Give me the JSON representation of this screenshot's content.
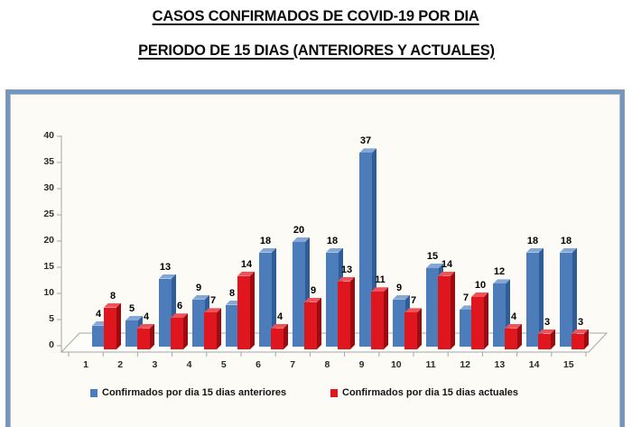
{
  "title": {
    "line1": "CASOS CONFIRMADOS DE COVID-19 POR DIA",
    "line2": "PERIODO DE 15 DIAS (ANTERIORES Y ACTUALES)"
  },
  "chart_data": {
    "type": "bar",
    "style": "3d-clustered-column",
    "title": "CASOS CONFIRMADOS DE COVID-19 POR DIA - PERIODO DE 15 DIAS (ANTERIORES Y ACTUALES)",
    "categories": [
      "1",
      "2",
      "3",
      "4",
      "5",
      "6",
      "7",
      "8",
      "9",
      "10",
      "11",
      "12",
      "13",
      "14",
      "15"
    ],
    "series": [
      {
        "name": "Confirmados por dia 15 dias anteriores",
        "color": "#4D7CBA",
        "values": [
          4,
          5,
          13,
          9,
          8,
          18,
          20,
          18,
          37,
          9,
          15,
          7,
          12,
          18,
          18
        ]
      },
      {
        "name": "Confirmados por dia 15 dias actuales",
        "color": "#E0161F",
        "values": [
          8,
          4,
          6,
          7,
          14,
          4,
          9,
          13,
          11,
          7,
          14,
          10,
          4,
          3,
          3
        ]
      }
    ],
    "xlabel": "",
    "ylabel": "",
    "ylim": [
      0,
      40
    ],
    "yticks": [
      0,
      5,
      10,
      15,
      20,
      25,
      30,
      35,
      40
    ],
    "grid": false,
    "data_labels": true,
    "legend_position": "bottom"
  },
  "colors": {
    "panel_border": "#6E96C8",
    "panel_bg": "#FCFBF5",
    "bar_blue": "#4D7CBA",
    "bar_blue_top": "#84A8D6",
    "bar_blue_side": "#2F5D97",
    "bar_red": "#E0161F",
    "bar_red_top": "#EF5358",
    "bar_red_side": "#9C0B10",
    "axis_line": "#A6A6A6",
    "floor_fill": "#FDFDFA"
  }
}
